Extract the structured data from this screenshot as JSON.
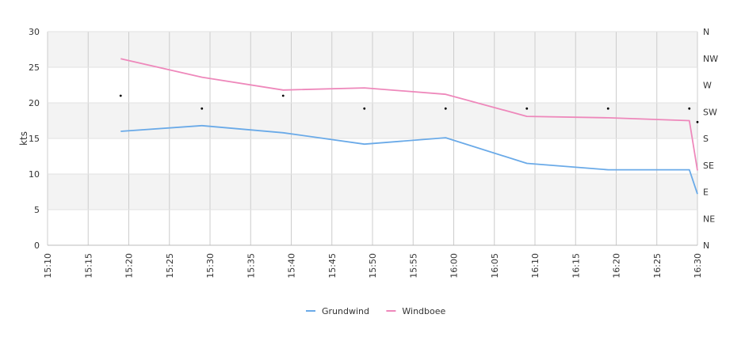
{
  "chart_data": {
    "type": "line",
    "title": "",
    "xlabel": "",
    "ylabel": "kts",
    "xlim": [
      "15:10",
      "16:30"
    ],
    "ylim": [
      0,
      30
    ],
    "grid": true,
    "legend_position": "bottom-center",
    "x_tick_labels": [
      "15:10",
      "15:15",
      "15:20",
      "15:25",
      "15:30",
      "15:35",
      "15:40",
      "15:45",
      "15:50",
      "15:55",
      "16:00",
      "16:05",
      "16:10",
      "16:15",
      "16:20",
      "16:25",
      "16:30"
    ],
    "y_tick_labels": [
      "0",
      "5",
      "10",
      "15",
      "20",
      "25",
      "30"
    ],
    "y2_tick_labels": [
      "N",
      "NE",
      "E",
      "SE",
      "S",
      "SW",
      "W",
      "NW",
      "N"
    ],
    "colors": {
      "Grundwind": "#6aaae8",
      "Windboee": "#ee88bb",
      "band": "#f3f3f3",
      "grid": "#cccccc",
      "direction_marker": "#000000"
    },
    "series": [
      {
        "name": "Grundwind",
        "points": [
          {
            "x": "15:19",
            "y": 16.0
          },
          {
            "x": "15:29",
            "y": 16.8
          },
          {
            "x": "15:39",
            "y": 15.8
          },
          {
            "x": "15:49",
            "y": 14.2
          },
          {
            "x": "15:59",
            "y": 15.1
          },
          {
            "x": "16:09",
            "y": 11.5
          },
          {
            "x": "16:19",
            "y": 10.6
          },
          {
            "x": "16:29",
            "y": 10.6
          },
          {
            "x": "16:30",
            "y": 7.2
          }
        ]
      },
      {
        "name": "Windboee",
        "points": [
          {
            "x": "15:19",
            "y": 26.2
          },
          {
            "x": "15:29",
            "y": 23.6
          },
          {
            "x": "15:39",
            "y": 21.8
          },
          {
            "x": "15:49",
            "y": 22.1
          },
          {
            "x": "15:59",
            "y": 21.2
          },
          {
            "x": "16:09",
            "y": 18.1
          },
          {
            "x": "16:19",
            "y": 17.9
          },
          {
            "x": "16:29",
            "y": 17.5
          },
          {
            "x": "16:30",
            "y": 10.5
          }
        ]
      }
    ],
    "wind_direction_points": [
      {
        "x": "15:19",
        "y": 21.0
      },
      {
        "x": "15:29",
        "y": 19.2
      },
      {
        "x": "15:39",
        "y": 21.0
      },
      {
        "x": "15:49",
        "y": 19.2
      },
      {
        "x": "15:59",
        "y": 19.2
      },
      {
        "x": "16:09",
        "y": 19.2
      },
      {
        "x": "16:19",
        "y": 19.2
      },
      {
        "x": "16:29",
        "y": 19.2
      },
      {
        "x": "16:30",
        "y": 17.3
      }
    ]
  }
}
